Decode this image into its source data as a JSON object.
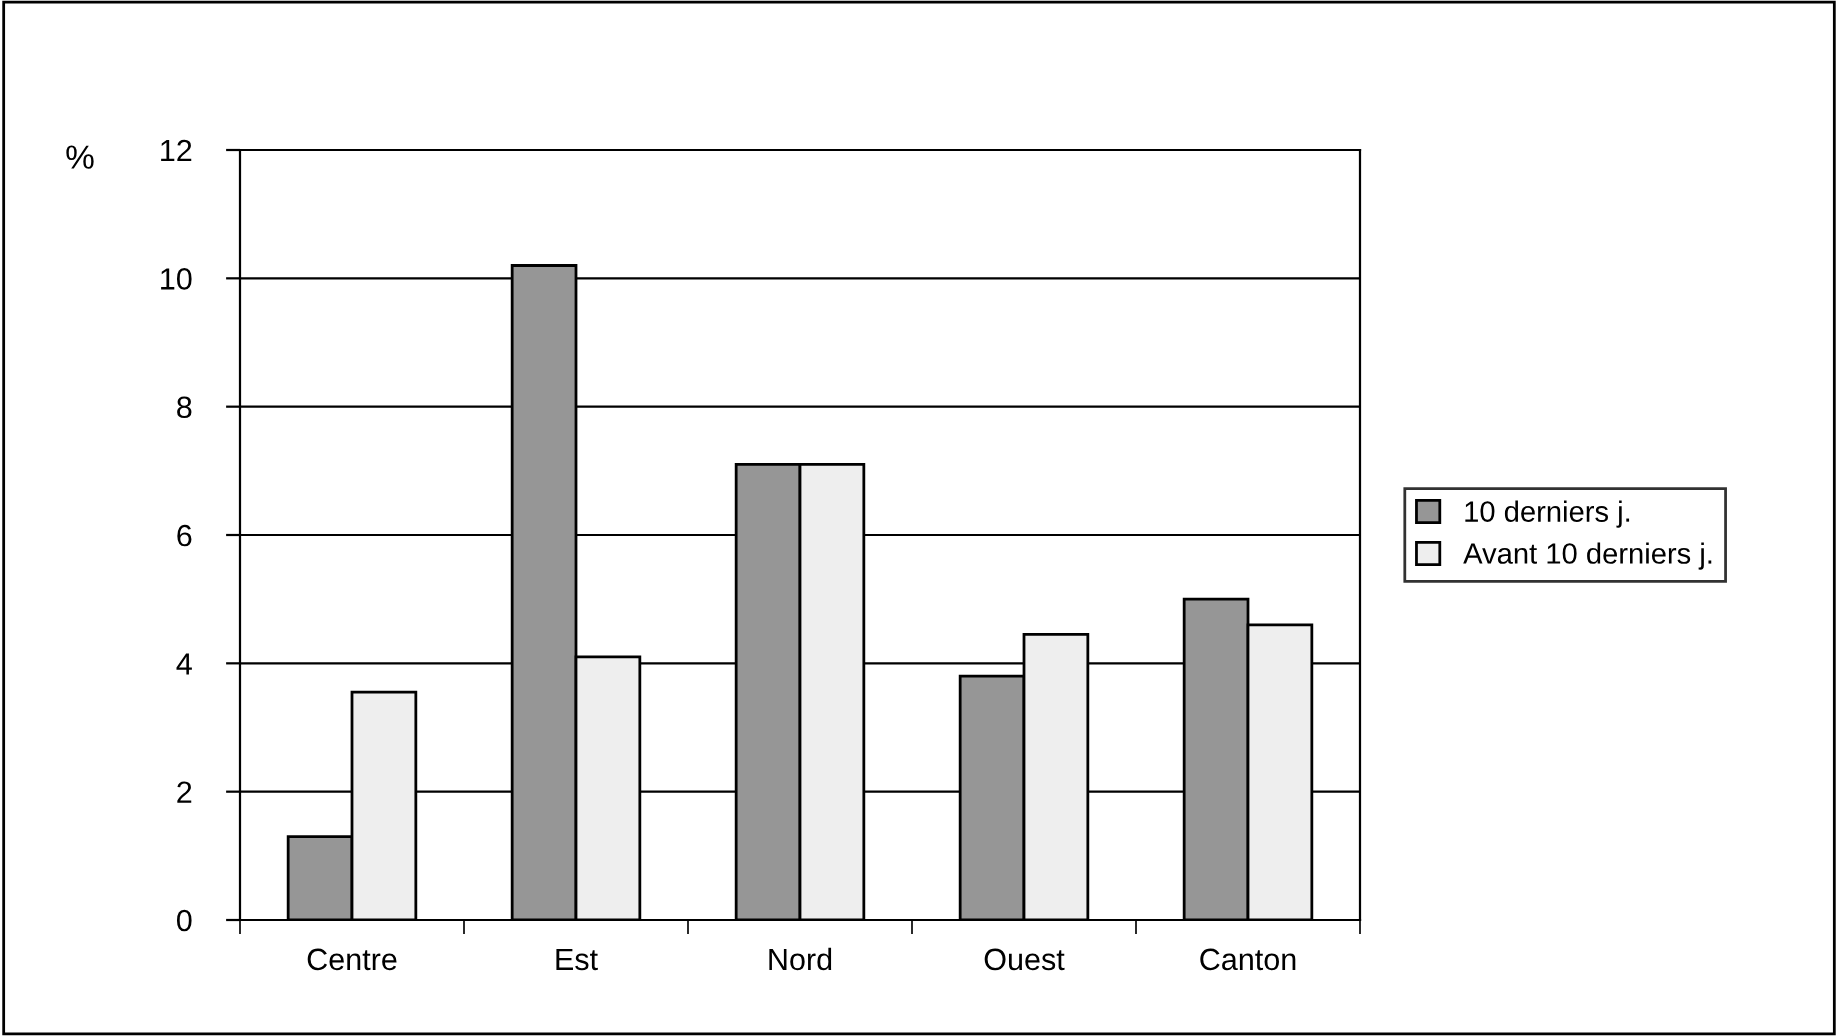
{
  "chart_data": {
    "type": "bar",
    "ylabel": "%",
    "categories": [
      "Centre",
      "Est",
      "Nord",
      "Ouest",
      "Canton"
    ],
    "series": [
      {
        "name": "10 derniers j.",
        "color": "#969696",
        "values": [
          1.3,
          10.2,
          7.1,
          3.8,
          5.0
        ]
      },
      {
        "name": "Avant 10 derniers j.",
        "color": "#eeeeee",
        "values": [
          3.55,
          4.1,
          7.1,
          4.45,
          4.6
        ]
      }
    ],
    "ylim": [
      0,
      12
    ],
    "yticks": [
      0,
      2,
      4,
      6,
      8,
      10,
      12
    ],
    "grid": "y",
    "legend": "right"
  }
}
